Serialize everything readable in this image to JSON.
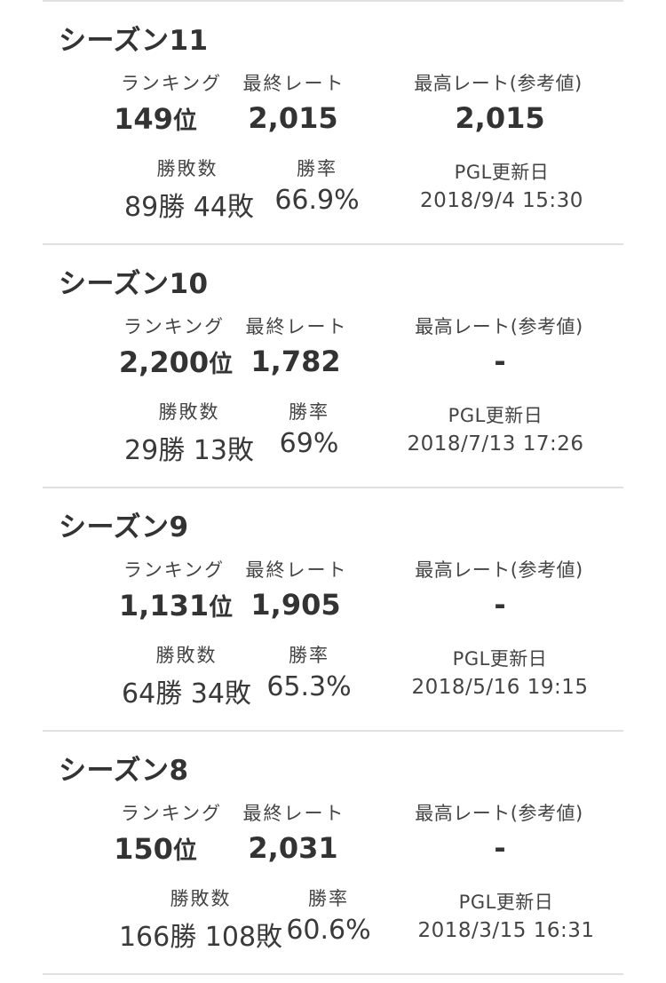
{
  "labels": {
    "ranking": "ランキング",
    "final_rate": "最終レート",
    "max_rate": "最高レート(参考値)",
    "win_loss": "勝敗数",
    "win_rate": "勝率",
    "pgl_updated": "PGL更新日"
  },
  "seasons": [
    {
      "title": "シーズン11",
      "rank": "149",
      "rank_unit": "位",
      "final_rate": "2,015",
      "max_rate": "2,015",
      "record": "89勝 44敗",
      "win_rate": "66.9%",
      "updated": "2018/9/4 15:30"
    },
    {
      "title": "シーズン10",
      "rank": "2,200",
      "rank_unit": "位",
      "final_rate": "1,782",
      "max_rate": "-",
      "record": "29勝 13敗",
      "win_rate": "69%",
      "updated": "2018/7/13 17:26"
    },
    {
      "title": "シーズン9",
      "rank": "1,131",
      "rank_unit": "位",
      "final_rate": "1,905",
      "max_rate": "-",
      "record": "64勝 34敗",
      "win_rate": "65.3%",
      "updated": "2018/5/16 19:15"
    },
    {
      "title": "シーズン8",
      "rank": "150",
      "rank_unit": "位",
      "final_rate": "2,031",
      "max_rate": "-",
      "record": "166勝 108敗",
      "win_rate": "60.6%",
      "updated": "2018/3/15 16:31"
    }
  ]
}
